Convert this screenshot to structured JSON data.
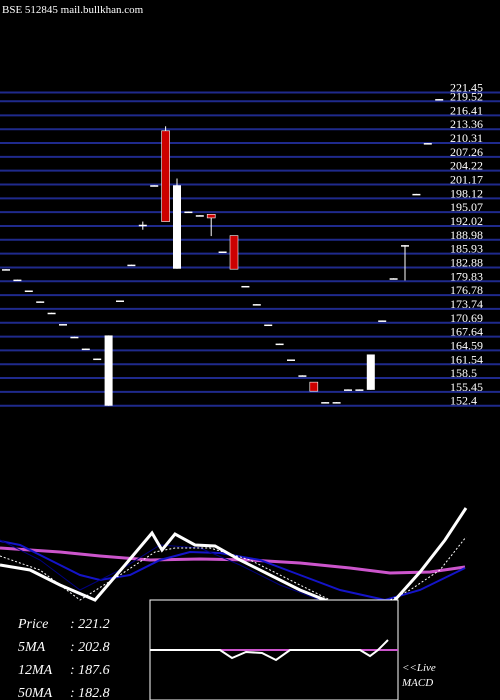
{
  "watermark": "BSE 512845 mail.bullkhan.com",
  "chart_data": {
    "type": "candlestick",
    "yticks": [
      221.45,
      219.52,
      216.41,
      213.36,
      210.31,
      207.26,
      204.22,
      201.17,
      198.12,
      195.07,
      192.02,
      188.98,
      185.93,
      182.88,
      179.83,
      176.78,
      173.74,
      170.69,
      167.64,
      164.59,
      161.54,
      158.5,
      155.45,
      152.4
    ],
    "ytick_labels": [
      "221.45",
      "219.52",
      "216.41",
      "213.36",
      "210.31",
      "207.26",
      "204.22",
      "201.17",
      "198.12",
      "195.07",
      "192.02",
      "188.98",
      "185.93",
      "182.88",
      "179.83",
      "176.78",
      "173.74",
      "170.69",
      "167.64",
      "164.59",
      "161.54",
      "158.5",
      "155.45",
      "152.4"
    ],
    "ylim": [
      151.9,
      222.0
    ],
    "colors": {
      "up": "#ffffff",
      "down": "#cc0000",
      "grid": "#1f2a8c",
      "ma5": "#ffffff",
      "ma12": "#1414c8",
      "ma50": "#cc55cc"
    },
    "candles": [
      {
        "o": 182.3,
        "c": 182.5,
        "h": 182.5,
        "l": 182.3
      },
      {
        "o": 180.0,
        "c": 180.2,
        "h": 180.2,
        "l": 180.0
      },
      {
        "o": 177.6,
        "c": 177.8,
        "h": 177.8,
        "l": 177.6
      },
      {
        "o": 175.2,
        "c": 175.4,
        "h": 175.4,
        "l": 175.2
      },
      {
        "o": 172.7,
        "c": 172.9,
        "h": 172.9,
        "l": 172.7
      },
      {
        "o": 170.2,
        "c": 170.4,
        "h": 170.4,
        "l": 170.2
      },
      {
        "o": 167.4,
        "c": 167.6,
        "h": 167.6,
        "l": 167.4
      },
      {
        "o": 164.8,
        "c": 165.0,
        "h": 165.0,
        "l": 164.8
      },
      {
        "o": 162.6,
        "c": 162.8,
        "h": 162.8,
        "l": 162.6
      },
      {
        "o": 152.4,
        "c": 167.9,
        "h": 167.9,
        "l": 152.4
      },
      {
        "o": 175.4,
        "c": 175.6,
        "h": 175.6,
        "l": 175.4
      },
      {
        "o": 183.3,
        "c": 183.5,
        "h": 183.5,
        "l": 183.3
      },
      {
        "o": 192.1,
        "c": 192.3,
        "h": 193.0,
        "l": 191.2
      },
      {
        "o": 200.8,
        "c": 201.0,
        "h": 201.0,
        "l": 200.8
      },
      {
        "o": 213.0,
        "c": 193.0,
        "h": 214.0,
        "l": 193.0
      },
      {
        "o": 182.6,
        "c": 201.0,
        "h": 202.5,
        "l": 182.6
      },
      {
        "o": 195.0,
        "c": 195.2,
        "h": 195.2,
        "l": 195.0
      },
      {
        "o": 194.2,
        "c": 194.4,
        "h": 194.4,
        "l": 194.2
      },
      {
        "o": 194.6,
        "c": 193.8,
        "h": 194.6,
        "l": 189.8
      },
      {
        "o": 186.2,
        "c": 186.4,
        "h": 186.4,
        "l": 186.2
      },
      {
        "o": 189.9,
        "c": 182.5,
        "h": 189.9,
        "l": 182.5
      },
      {
        "o": 178.6,
        "c": 178.8,
        "h": 178.8,
        "l": 178.6
      },
      {
        "o": 174.6,
        "c": 174.8,
        "h": 174.8,
        "l": 174.6
      },
      {
        "o": 170.1,
        "c": 170.3,
        "h": 170.3,
        "l": 170.1
      },
      {
        "o": 165.9,
        "c": 166.1,
        "h": 166.1,
        "l": 165.9
      },
      {
        "o": 162.4,
        "c": 162.6,
        "h": 162.6,
        "l": 162.4
      },
      {
        "o": 158.9,
        "c": 159.1,
        "h": 159.1,
        "l": 158.9
      },
      {
        "o": 157.6,
        "c": 155.6,
        "h": 157.6,
        "l": 155.6
      },
      {
        "o": 153.0,
        "c": 153.2,
        "h": 153.2,
        "l": 153.0
      },
      {
        "o": 153.0,
        "c": 153.2,
        "h": 153.2,
        "l": 153.0
      },
      {
        "o": 155.8,
        "c": 156.0,
        "h": 156.0,
        "l": 155.8
      },
      {
        "o": 155.8,
        "c": 156.0,
        "h": 156.0,
        "l": 155.8
      },
      {
        "o": 155.9,
        "c": 163.7,
        "h": 163.7,
        "l": 155.9
      },
      {
        "o": 171.0,
        "c": 171.2,
        "h": 171.2,
        "l": 171.0
      },
      {
        "o": 180.3,
        "c": 180.5,
        "h": 180.5,
        "l": 180.3
      },
      {
        "o": 187.6,
        "c": 187.8,
        "h": 187.8,
        "l": 180.0
      },
      {
        "o": 198.9,
        "c": 199.1,
        "h": 199.1,
        "l": 198.9
      },
      {
        "o": 210.1,
        "c": 210.3,
        "h": 210.3,
        "l": 210.1
      },
      {
        "o": 219.8,
        "c": 220.0,
        "h": 220.0,
        "l": 219.8
      }
    ],
    "stats": [
      {
        "label": "Price",
        "value": "221.2"
      },
      {
        "label": "5MA",
        "value": "202.8"
      },
      {
        "label": "12MA",
        "value": "187.6"
      },
      {
        "label": "50MA",
        "value": "182.8"
      }
    ],
    "macd_label": "<<Live\nMACD"
  }
}
